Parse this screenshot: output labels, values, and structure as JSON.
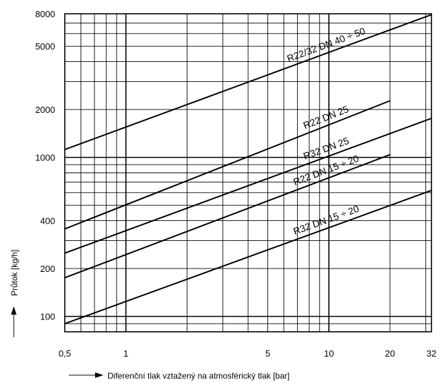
{
  "chart_data": {
    "type": "line",
    "title": "",
    "xlabel": "Diferenční tlak vztažený na atmosférický tlak [bar]",
    "ylabel": "Průtok [kg/h]",
    "x_scale": "log",
    "y_scale": "log",
    "xlim": [
      0.5,
      32
    ],
    "ylim": [
      80,
      8000
    ],
    "x_ticks": [
      0.5,
      1,
      5,
      10,
      20,
      32
    ],
    "x_tick_labels": [
      "0,5",
      "1",
      "5",
      "10",
      "20",
      "32"
    ],
    "y_ticks": [
      100,
      200,
      400,
      1000,
      2000,
      5000,
      8000
    ],
    "y_tick_labels": [
      "100",
      "200",
      "400",
      "1000",
      "2000",
      "5000",
      "8000"
    ],
    "grid": true,
    "series": [
      {
        "name": "R22/32  DN 40 ÷ 50",
        "x": [
          0.5,
          32
        ],
        "y": [
          1120,
          7900
        ]
      },
      {
        "name": "R22 DN 25",
        "x": [
          0.5,
          20
        ],
        "y": [
          355,
          2270
        ]
      },
      {
        "name": "R32 DN 25",
        "x": [
          0.5,
          32
        ],
        "y": [
          250,
          1760
        ]
      },
      {
        "name": "R22  DN 15 ÷ 20",
        "x": [
          0.5,
          20
        ],
        "y": [
          175,
          1040
        ]
      },
      {
        "name": "R32  DN 15 ÷ 20",
        "x": [
          0.5,
          32
        ],
        "y": [
          90,
          620
        ]
      }
    ]
  }
}
